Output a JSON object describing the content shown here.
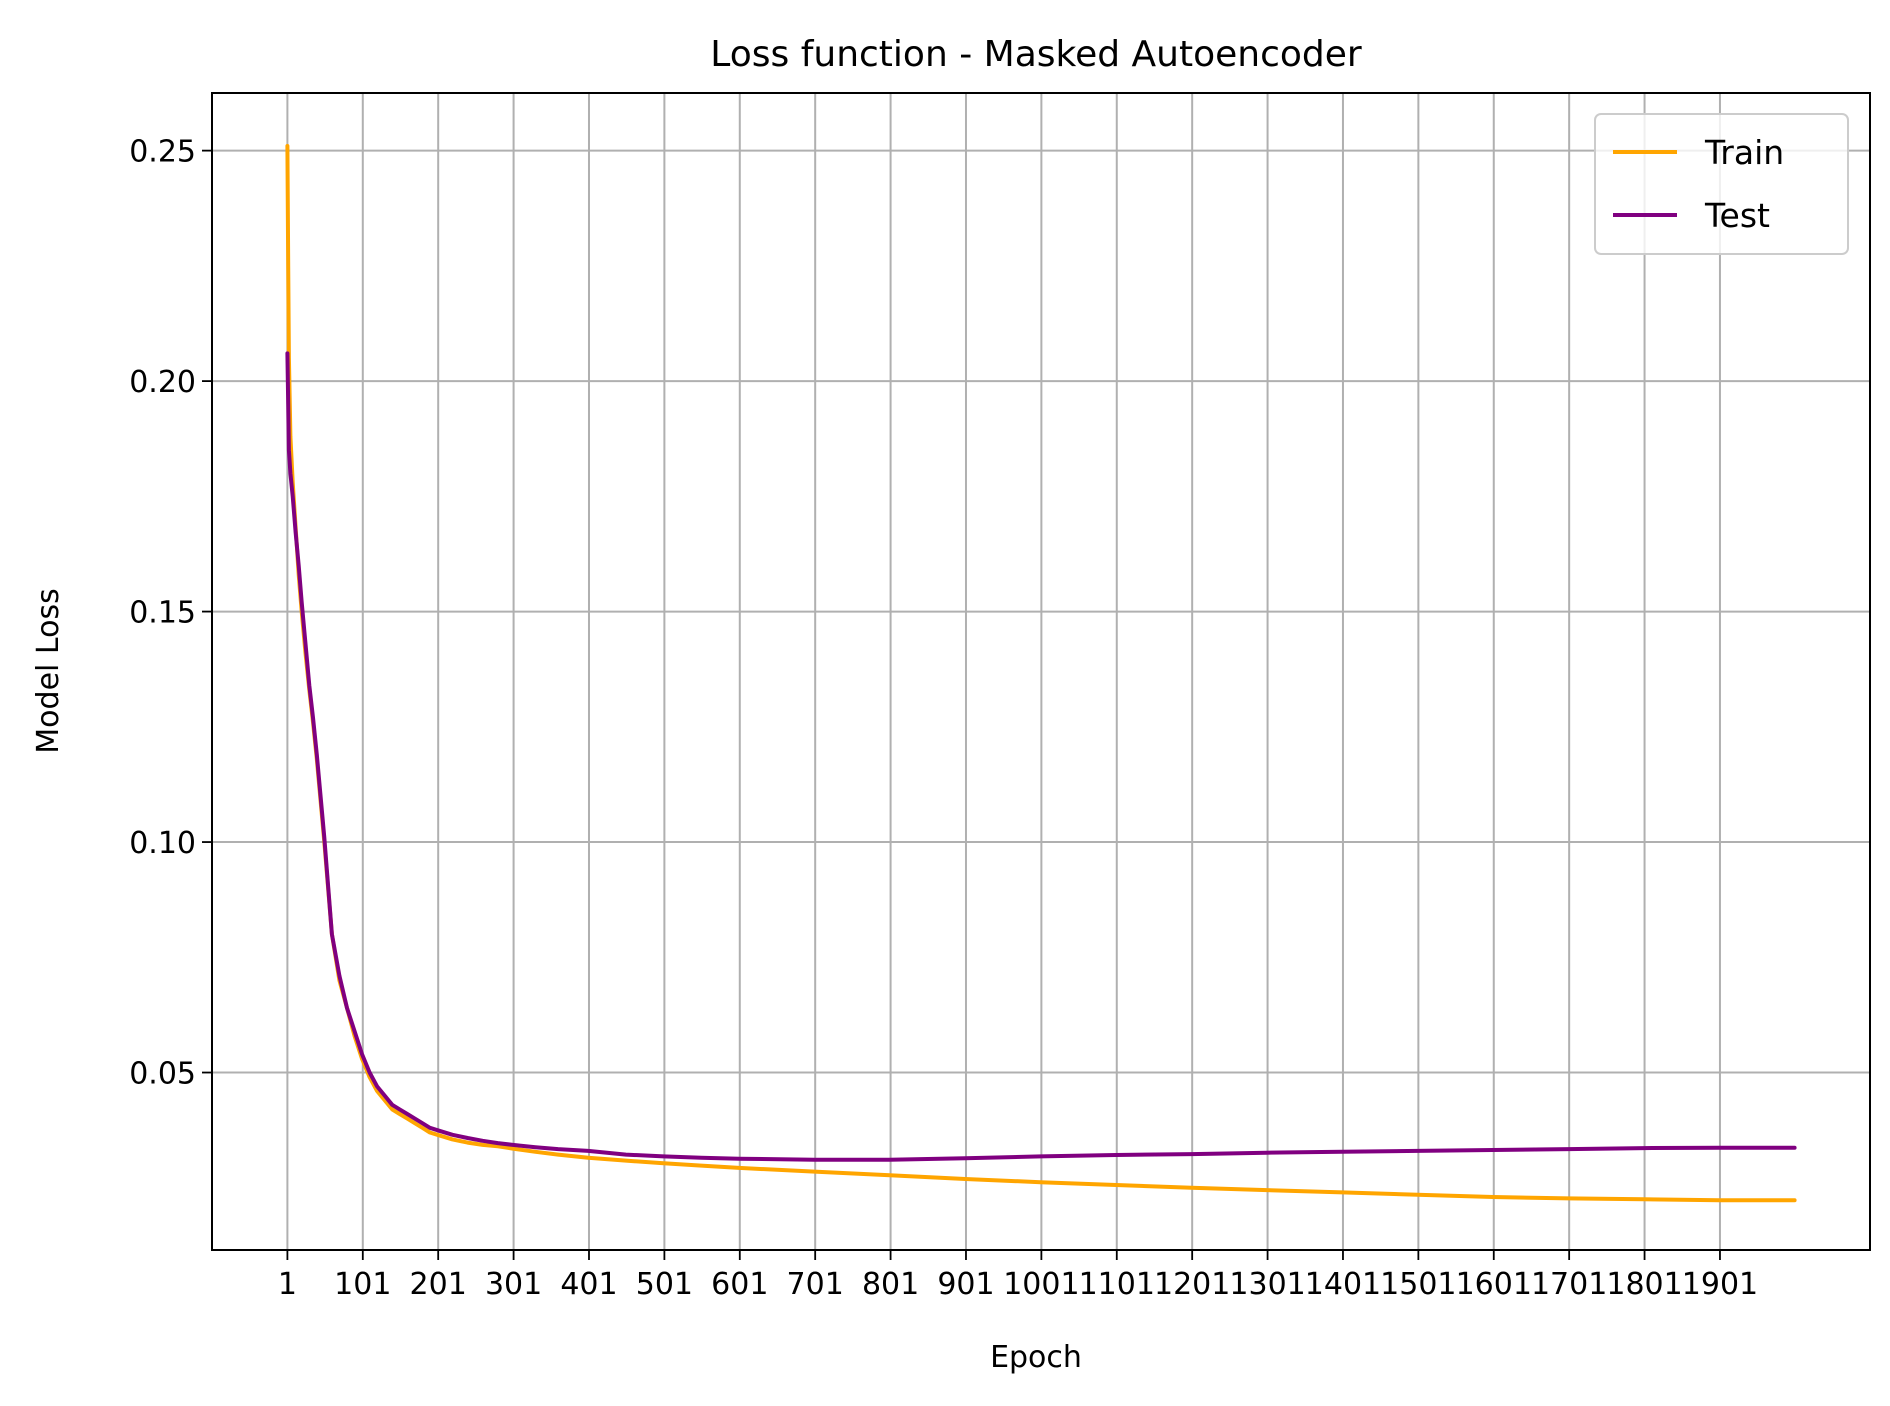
{
  "chart_data": {
    "type": "line",
    "title": "Loss function - Masked Autoencoder",
    "xlabel": "Epoch",
    "ylabel": "Model Loss",
    "x_ticks": [
      1,
      101,
      201,
      301,
      401,
      501,
      601,
      701,
      801,
      901,
      1001,
      1101,
      1201,
      1301,
      1401,
      1501,
      1601,
      1701,
      1801,
      1901
    ],
    "x_tick_labels": [
      "1",
      "101",
      "201",
      "301",
      "401",
      "501",
      "601",
      "701",
      "801",
      "901",
      "1001",
      "1101",
      "1201",
      "1301",
      "1401",
      "1501",
      "1601",
      "1701",
      "1801",
      "1901"
    ],
    "y_ticks": [
      0.05,
      0.1,
      0.15,
      0.2,
      0.25
    ],
    "y_tick_labels": [
      "0.05",
      "0.10",
      "0.15",
      "0.20",
      "0.25"
    ],
    "xlim": [
      -99,
      2100
    ],
    "ylim": [
      0.0115,
      0.2625
    ],
    "grid": true,
    "legend_position": "top-right",
    "series": [
      {
        "name": "Train",
        "color": "#ffa500",
        "x": [
          1,
          2,
          3,
          5,
          8,
          12,
          16,
          20,
          25,
          30,
          35,
          40,
          50,
          60,
          70,
          80,
          90,
          100,
          110,
          120,
          130,
          140,
          150,
          160,
          170,
          180,
          190,
          200,
          220,
          240,
          260,
          280,
          300,
          330,
          360,
          400,
          450,
          500,
          550,
          600,
          700,
          800,
          900,
          1000,
          1100,
          1200,
          1300,
          1400,
          1500,
          1600,
          1700,
          1800,
          1900,
          2000
        ],
        "y": [
          0.251,
          0.225,
          0.205,
          0.188,
          0.178,
          0.168,
          0.158,
          0.15,
          0.141,
          0.133,
          0.126,
          0.118,
          0.1,
          0.08,
          0.07,
          0.064,
          0.058,
          0.053,
          0.049,
          0.046,
          0.044,
          0.042,
          0.041,
          0.04,
          0.039,
          0.038,
          0.037,
          0.0365,
          0.0355,
          0.0348,
          0.0343,
          0.034,
          0.0335,
          0.0328,
          0.0322,
          0.0315,
          0.0309,
          0.0303,
          0.0298,
          0.0293,
          0.0285,
          0.0277,
          0.0269,
          0.0262,
          0.0256,
          0.025,
          0.0245,
          0.024,
          0.0235,
          0.023,
          0.0227,
          0.0225,
          0.0223,
          0.0223
        ]
      },
      {
        "name": "Test",
        "color": "#800080",
        "x": [
          1,
          2,
          3,
          5,
          8,
          12,
          16,
          20,
          25,
          30,
          35,
          40,
          50,
          60,
          70,
          80,
          90,
          100,
          110,
          120,
          130,
          140,
          150,
          160,
          170,
          180,
          190,
          200,
          220,
          240,
          260,
          280,
          300,
          330,
          360,
          400,
          450,
          500,
          550,
          600,
          700,
          800,
          900,
          1000,
          1100,
          1200,
          1300,
          1400,
          1500,
          1600,
          1700,
          1800,
          1900,
          2000
        ],
        "y": [
          0.206,
          0.195,
          0.185,
          0.18,
          0.175,
          0.167,
          0.16,
          0.152,
          0.143,
          0.134,
          0.127,
          0.119,
          0.101,
          0.08,
          0.071,
          0.064,
          0.059,
          0.054,
          0.05,
          0.047,
          0.045,
          0.043,
          0.042,
          0.041,
          0.04,
          0.039,
          0.038,
          0.0375,
          0.0365,
          0.0358,
          0.0352,
          0.0347,
          0.0343,
          0.0338,
          0.0334,
          0.033,
          0.0322,
          0.0318,
          0.0315,
          0.0313,
          0.0311,
          0.0311,
          0.0314,
          0.0318,
          0.0321,
          0.0323,
          0.0326,
          0.0328,
          0.033,
          0.0332,
          0.0334,
          0.0336,
          0.0337,
          0.0337
        ]
      }
    ]
  }
}
